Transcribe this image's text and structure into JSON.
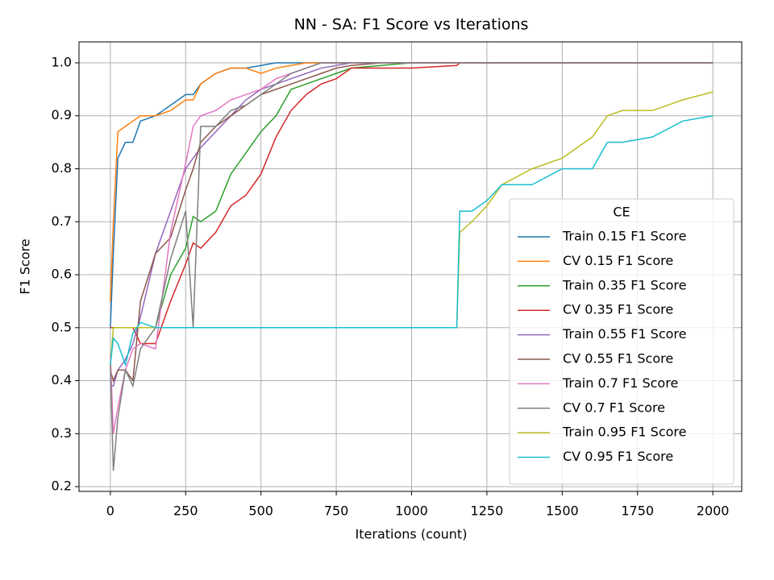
{
  "chart_data": {
    "type": "line",
    "title": "NN - SA: F1 Score vs Iterations",
    "x_label": "Iterations (count)",
    "y_label": "F1 Score",
    "legend_title": "CE",
    "legend": "lower right",
    "grid": true,
    "x": [
      0,
      10,
      25,
      50,
      75,
      100,
      150,
      200,
      250,
      275,
      300,
      350,
      400,
      450,
      500,
      550,
      600,
      650,
      700,
      750,
      800,
      900,
      1000,
      1150,
      1160,
      1200,
      1250,
      1300,
      1400,
      1500,
      1600,
      1650,
      1700,
      1800,
      1900,
      2000
    ],
    "xlim": [
      -104,
      2096
    ],
    "xticks": [
      0,
      250,
      500,
      750,
      1000,
      1250,
      1500,
      1750,
      2000
    ],
    "ylim": [
      0.191,
      1.0395
    ],
    "yticks": [
      0.2,
      0.3,
      0.4,
      0.5,
      0.6,
      0.7,
      0.8,
      0.9,
      {
        "value": 1,
        "label": "1.0"
      }
    ],
    "series": [
      {
        "name": "Train 0.15 F1 Score",
        "color": "#1f77b4",
        "values": [
          0.5,
          0.64,
          0.82,
          0.85,
          0.85,
          0.89,
          0.9,
          0.92,
          0.94,
          0.94,
          0.96,
          0.98,
          0.99,
          0.99,
          0.995,
          1,
          1,
          1,
          1,
          1,
          1,
          1,
          1,
          1,
          1,
          1,
          1,
          1,
          1,
          1,
          1,
          1,
          1,
          1,
          1,
          1
        ]
      },
      {
        "name": "CV 0.15 F1 Score",
        "color": "#ff7f0e",
        "values": [
          0.55,
          0.7,
          0.87,
          0.88,
          0.89,
          0.9,
          0.9,
          0.91,
          0.93,
          0.93,
          0.96,
          0.98,
          0.99,
          0.99,
          0.98,
          0.99,
          0.995,
          1,
          1,
          1,
          1,
          1,
          1,
          1,
          1,
          1,
          1,
          1,
          1,
          1,
          1,
          1,
          1,
          1,
          1,
          1
        ]
      },
      {
        "name": "Train 0.35 F1 Score",
        "color": "#2ca02c",
        "values": [
          0.5,
          0.5,
          0.5,
          0.5,
          0.5,
          0.5,
          0.5,
          0.6,
          0.65,
          0.71,
          0.7,
          0.72,
          0.79,
          0.83,
          0.87,
          0.9,
          0.95,
          0.96,
          0.97,
          0.98,
          0.99,
          0.995,
          1,
          1,
          1,
          1,
          1,
          1,
          1,
          1,
          1,
          1,
          1,
          1,
          1,
          1
        ]
      },
      {
        "name": "CV 0.35 F1 Score",
        "color": "#d62728",
        "values": [
          0.5,
          0.5,
          0.5,
          0.5,
          0.5,
          0.47,
          0.47,
          0.55,
          0.62,
          0.66,
          0.65,
          0.68,
          0.73,
          0.75,
          0.79,
          0.86,
          0.91,
          0.94,
          0.96,
          0.97,
          0.99,
          0.99,
          0.99,
          0.995,
          1,
          1,
          1,
          1,
          1,
          1,
          1,
          1,
          1,
          1,
          1,
          1
        ]
      },
      {
        "name": "Train 0.55 F1 Score",
        "color": "#9467bd",
        "values": [
          0.39,
          0.39,
          0.42,
          0.44,
          0.47,
          0.52,
          0.64,
          0.72,
          0.8,
          0.82,
          0.84,
          0.87,
          0.9,
          0.93,
          0.95,
          0.96,
          0.97,
          0.98,
          0.99,
          0.995,
          1,
          1,
          1,
          1,
          1,
          1,
          1,
          1,
          1,
          1,
          1,
          1,
          1,
          1,
          1,
          1
        ]
      },
      {
        "name": "CV 0.55 F1 Score",
        "color": "#8c564b",
        "values": [
          0.42,
          0.4,
          0.42,
          0.42,
          0.4,
          0.55,
          0.64,
          0.67,
          0.76,
          0.8,
          0.85,
          0.88,
          0.9,
          0.92,
          0.94,
          0.95,
          0.96,
          0.97,
          0.98,
          0.99,
          0.995,
          1,
          1,
          1,
          1,
          1,
          1,
          1,
          1,
          1,
          1,
          1,
          1,
          1,
          1,
          1
        ]
      },
      {
        "name": "Train 0.7 F1 Score",
        "color": "#e377c2",
        "values": [
          0.45,
          0.3,
          0.35,
          0.42,
          0.46,
          0.47,
          0.46,
          0.68,
          0.81,
          0.88,
          0.9,
          0.91,
          0.93,
          0.94,
          0.95,
          0.97,
          0.98,
          0.99,
          1,
          1,
          1,
          1,
          1,
          1,
          1,
          1,
          1,
          1,
          1,
          1,
          1,
          1,
          1,
          1,
          1,
          1
        ]
      },
      {
        "name": "CV 0.7 F1 Score",
        "color": "#7f7f7f",
        "values": [
          0.43,
          0.23,
          0.33,
          0.42,
          0.39,
          0.46,
          0.5,
          0.63,
          0.72,
          0.5,
          0.88,
          0.88,
          0.91,
          0.92,
          0.94,
          0.96,
          0.98,
          0.99,
          1,
          1,
          1,
          1,
          1,
          1,
          1,
          1,
          1,
          1,
          1,
          1,
          1,
          1,
          1,
          1,
          1,
          1
        ]
      },
      {
        "name": "Train 0.95 F1 Score",
        "color": "#bcbd22",
        "values": [
          0.43,
          0.5,
          0.5,
          0.5,
          0.5,
          0.5,
          0.5,
          0.5,
          0.5,
          0.5,
          0.5,
          0.5,
          0.5,
          0.5,
          0.5,
          0.5,
          0.5,
          0.5,
          0.5,
          0.5,
          0.5,
          0.5,
          0.5,
          0.5,
          0.68,
          0.7,
          0.73,
          0.77,
          0.8,
          0.82,
          0.86,
          0.9,
          0.91,
          0.91,
          0.93,
          0.945
        ]
      },
      {
        "name": "CV 0.95 F1 Score",
        "color": "#17becf",
        "values": [
          0.43,
          0.48,
          0.47,
          0.43,
          0.49,
          0.51,
          0.5,
          0.5,
          0.5,
          0.5,
          0.5,
          0.5,
          0.5,
          0.5,
          0.5,
          0.5,
          0.5,
          0.5,
          0.5,
          0.5,
          0.5,
          0.5,
          0.5,
          0.5,
          0.72,
          0.72,
          0.74,
          0.77,
          0.77,
          0.8,
          0.8,
          0.85,
          0.85,
          0.86,
          0.89,
          0.9
        ]
      }
    ]
  }
}
